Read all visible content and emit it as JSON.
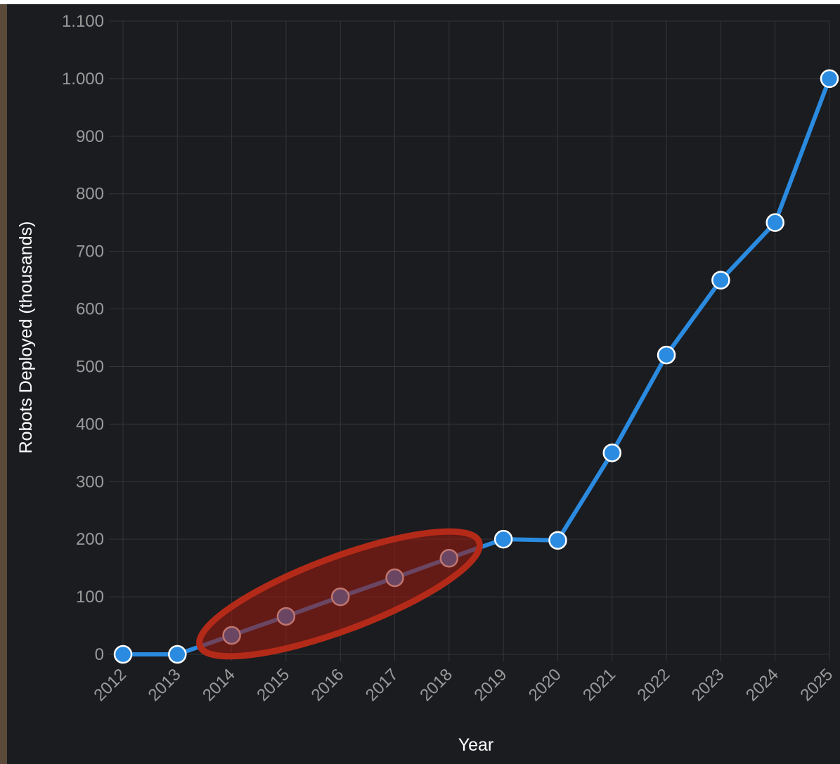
{
  "chart_data": {
    "type": "line",
    "x_label": "Year",
    "y_label": "Robots Deployed (thousands)",
    "categories": [
      "2012",
      "2013",
      "2014",
      "2015",
      "2016",
      "2017",
      "2018",
      "2019",
      "2020",
      "2021",
      "2022",
      "2023",
      "2024",
      "2025"
    ],
    "series": [
      {
        "name": "Robots Deployed (thousands)",
        "color": "#2a8be0",
        "values": [
          0,
          0,
          33,
          66,
          100,
          133,
          167,
          200,
          198,
          350,
          520,
          650,
          750,
          1000
        ]
      }
    ],
    "ylim": [
      0,
      1100
    ],
    "yticks": [
      0,
      100,
      200,
      300,
      400,
      500,
      600,
      700,
      800,
      900,
      {
        "value": 1000,
        "label": "1.000"
      },
      {
        "value": 1100,
        "label": "1.100"
      }
    ],
    "grid": true
  }
}
